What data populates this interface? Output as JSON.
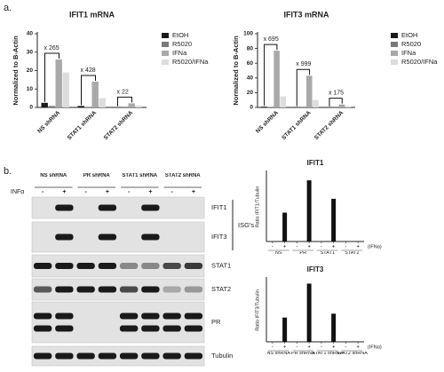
{
  "panel_labels": [
    "a.",
    "b."
  ],
  "chart_data": [
    {
      "type": "bar",
      "title": "IFIT1 mRNA",
      "y_label": "Normalized to B-Actin",
      "categories": [
        "NS shRNA",
        "STAT1 shRNA",
        "STAT2 shRNA"
      ],
      "series": [
        {
          "name": "EtOH",
          "color": "#1a1a1a",
          "values": [
            2.5,
            0.8,
            0.2
          ]
        },
        {
          "name": "R5020",
          "color": "#7a7a7a",
          "values": [
            0.8,
            0.3,
            0.1
          ]
        },
        {
          "name": "IFNa",
          "color": "#a9a9a9",
          "values": [
            26,
            14,
            2.2
          ]
        },
        {
          "name": "R5020/IFNa",
          "color": "#dcdcdc",
          "values": [
            19,
            5,
            1
          ]
        }
      ],
      "ylim": [
        0,
        40
      ],
      "yticks": [
        0,
        10,
        20,
        30,
        40
      ],
      "annotations": [
        "x 265",
        "x 428",
        "x 22"
      ],
      "legend": "right"
    },
    {
      "type": "bar",
      "title": "IFIT3 mRNA",
      "y_label": "Normalized to B-Actin",
      "categories": [
        "NS shRNA",
        "STAT1 shRNA",
        "STAT2 shRNA"
      ],
      "series": [
        {
          "name": "EtOH",
          "color": "#1a1a1a",
          "values": [
            1,
            0.5,
            0.3
          ]
        },
        {
          "name": "R5020",
          "color": "#7a7a7a",
          "values": [
            0.5,
            0.3,
            0.2
          ]
        },
        {
          "name": "IFNa",
          "color": "#a9a9a9",
          "values": [
            77,
            43,
            4
          ]
        },
        {
          "name": "R5020/IFNa",
          "color": "#dcdcdc",
          "values": [
            15,
            10,
            2
          ]
        }
      ],
      "ylim": [
        0,
        100
      ],
      "yticks": [
        0,
        20,
        40,
        60,
        80,
        100
      ],
      "annotations": [
        "x 695",
        "x 999",
        "x 175"
      ],
      "legend": "right"
    },
    {
      "type": "bar",
      "title": "IFIT1",
      "y_label": "Ratio IFIT1/Tubulin",
      "groups": [
        "NS",
        "PR",
        "STAT1",
        "STAT2"
      ],
      "categories": [
        "-",
        "+",
        "-",
        "+",
        "-",
        "+",
        "-",
        "+"
      ],
      "values": [
        0,
        25,
        0,
        53,
        0,
        37,
        0,
        0
      ],
      "color": "#111111",
      "ylim": [
        0,
        60
      ],
      "x_note": "(IFNα)"
    },
    {
      "type": "bar",
      "title": "IFIT3",
      "y_label": "Ratio IFIT3/Tubulin",
      "groups": [
        "NS shRNA",
        "PR shRNA",
        "STAT1 shRNA",
        "STAT2 shRNA"
      ],
      "categories": [
        "-",
        "+",
        "-",
        "+",
        "-",
        "+",
        "-",
        "+"
      ],
      "values": [
        0,
        50,
        0,
        120,
        0,
        58,
        0,
        0
      ],
      "color": "#111111",
      "ylim": [
        0,
        130
      ],
      "x_note": "(IFNα)"
    }
  ],
  "blot": {
    "treatment_label": "INFα",
    "columns": [
      "NS shRNA",
      "PR shRNA",
      "STAT1 shRNA",
      "STAT2 shRNA"
    ],
    "treatment": [
      "-",
      "+",
      "-",
      "+",
      "-",
      "+",
      "-",
      "+"
    ],
    "rows": [
      "IFIT1",
      "IFIT3",
      "STAT1",
      "STAT2",
      "PR",
      "Tubulin"
    ],
    "group_label": "ISG's"
  }
}
